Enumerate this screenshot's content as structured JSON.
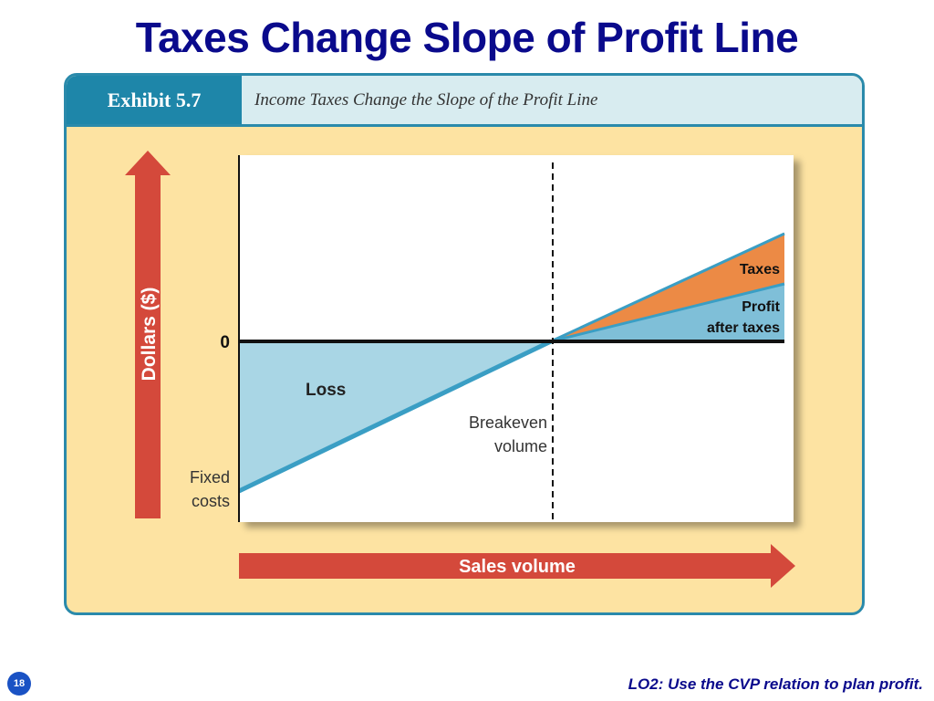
{
  "slide": {
    "title": "Taxes Change Slope of Profit Line",
    "page_number": "18",
    "footer": "LO2: Use the CVP relation to plan profit."
  },
  "exhibit": {
    "number": "Exhibit 5.7",
    "caption": "Income Taxes Change the Slope of the Profit Line"
  },
  "diagram": {
    "y_axis_label": "Dollars ($)",
    "x_axis_label": "Sales volume",
    "zero_label": "0",
    "loss_label": "Loss",
    "breakeven_label_line1": "Breakeven",
    "breakeven_label_line2": "volume",
    "fixed_costs_label_line1": "Fixed",
    "fixed_costs_label_line2": "costs",
    "taxes_label": "Taxes",
    "profit_label_line1": "Profit",
    "profit_label_line2": "after taxes"
  },
  "colors": {
    "title": "#0a0a8c",
    "exhibit_border": "#2a8aab",
    "exhibit_background": "#fde3a2",
    "arrow": "#d4493b",
    "loss_area": "#a9d6e5",
    "profit_area": "#7fbfd8",
    "taxes_area": "#ec8a45",
    "profit_line": "#3a9ec4"
  }
}
